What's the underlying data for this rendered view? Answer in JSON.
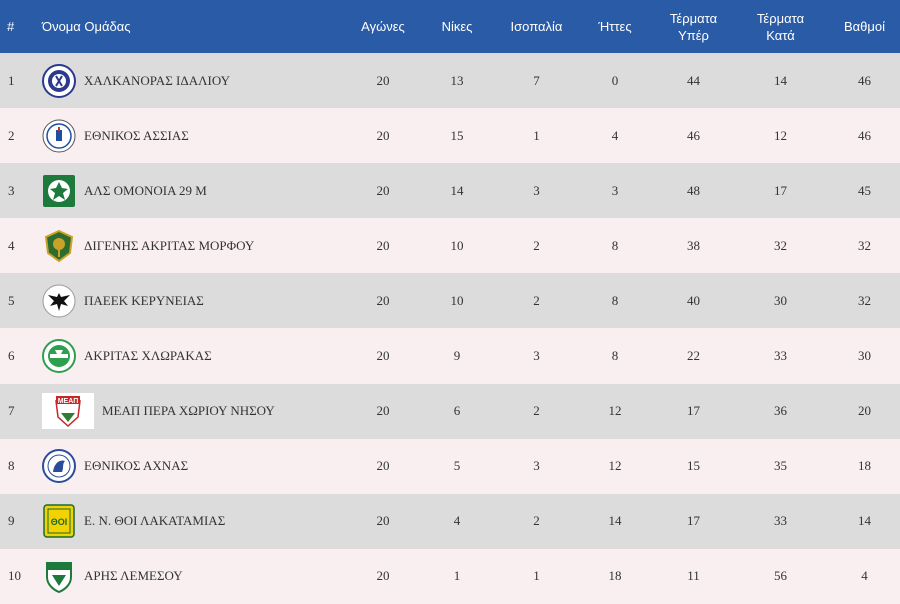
{
  "headers": {
    "pos": "#",
    "team": "Όνομα Ομάδας",
    "played": "Αγώνες",
    "wins": "Νίκες",
    "draws": "Ισοπαλία",
    "losses": "Ήττες",
    "gf_1": "Τέρματα",
    "gf_2": "Υπέρ",
    "ga_1": "Τέρματα",
    "ga_2": "Κατά",
    "points": "Βαθμοί"
  },
  "colors": {
    "header_bg": "#2a5ba6",
    "row_odd": "#dcdcdc",
    "row_even": "#f9eff0"
  },
  "rows": [
    {
      "pos": "1",
      "team": "ΧΑΛΚΑΝΟΡΑΣ ΙΔΑΛΙΟΥ",
      "logo": "chalkanoras-idaliou-crest-icon",
      "played": "20",
      "wins": "13",
      "draws": "7",
      "losses": "0",
      "gf": "44",
      "ga": "14",
      "points": "46"
    },
    {
      "pos": "2",
      "team": "ΕΘΝΙΚΟΣ ΑΣΣΙΑΣ",
      "logo": "ethnikos-assias-crest-icon",
      "played": "20",
      "wins": "15",
      "draws": "1",
      "losses": "4",
      "gf": "46",
      "ga": "12",
      "points": "46"
    },
    {
      "pos": "3",
      "team": "ΑΛΣ ΟΜΟΝΟΙΑ 29 Μ",
      "logo": "omonoia-29m-crest-icon",
      "played": "20",
      "wins": "14",
      "draws": "3",
      "losses": "3",
      "gf": "48",
      "ga": "17",
      "points": "45"
    },
    {
      "pos": "4",
      "team": "ΔΙΓΕΝΗΣ ΑΚΡΙΤΑΣ ΜΟΡΦΟΥ",
      "logo": "digenis-morfou-crest-icon",
      "played": "20",
      "wins": "10",
      "draws": "2",
      "losses": "8",
      "gf": "38",
      "ga": "32",
      "points": "32"
    },
    {
      "pos": "5",
      "team": "ΠΑΕΕΚ ΚΕΡΥΝΕΙΑΣ",
      "logo": "paeek-eagle-crest-icon",
      "played": "20",
      "wins": "10",
      "draws": "2",
      "losses": "8",
      "gf": "40",
      "ga": "30",
      "points": "32"
    },
    {
      "pos": "6",
      "team": "ΑΚΡΙΤΑΣ ΧΛΩΡΑΚΑΣ",
      "logo": "akritas-chlorakas-crest-icon",
      "played": "20",
      "wins": "9",
      "draws": "3",
      "losses": "8",
      "gf": "22",
      "ga": "33",
      "points": "30"
    },
    {
      "pos": "7",
      "team": "ΜΕΑΠ ΠΕΡΑ ΧΩΡΙΟΥ ΝΗΣΟΥ",
      "logo": "meap-crest-icon",
      "logo_text": "ΜΕΑΠ",
      "played": "20",
      "wins": "6",
      "draws": "2",
      "losses": "12",
      "gf": "17",
      "ga": "36",
      "points": "20"
    },
    {
      "pos": "8",
      "team": "ΕΘΝΙΚΟΣ ΑΧΝΑΣ",
      "logo": "ethnikos-achnas-crest-icon",
      "played": "20",
      "wins": "5",
      "draws": "3",
      "losses": "12",
      "gf": "15",
      "ga": "35",
      "points": "18"
    },
    {
      "pos": "9",
      "team": "Ε. Ν. ΘΟΙ ΛΑΚΑΤΑΜΙΑΣ",
      "logo": "thoi-lakatamias-crest-icon",
      "logo_text": "ΘΟΙ",
      "played": "20",
      "wins": "4",
      "draws": "2",
      "losses": "14",
      "gf": "17",
      "ga": "33",
      "points": "14"
    },
    {
      "pos": "10",
      "team": "ΑΡΗΣ ΛΕΜΕΣΟΥ",
      "logo": "aris-limassol-crest-icon",
      "played": "20",
      "wins": "1",
      "draws": "1",
      "losses": "18",
      "gf": "11",
      "ga": "56",
      "points": "4"
    }
  ]
}
